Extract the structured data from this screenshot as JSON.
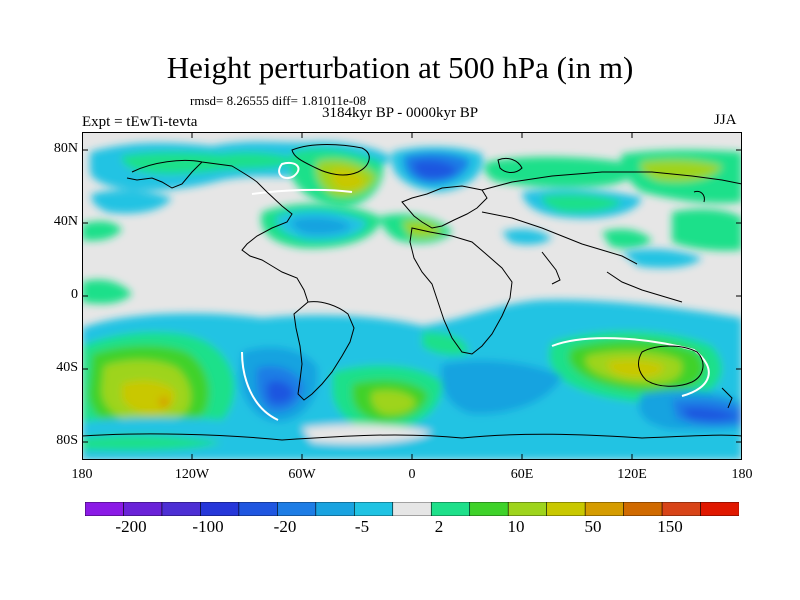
{
  "title": "Height perturbation at 500 hPa (in m)",
  "stats": "rmsd= 8.26555 diff= 1.81011e-08",
  "period": "3184kyr BP - 0000kyr BP",
  "experiment": "Expt = tEwTi-tevta",
  "season": "JJA",
  "axes": {
    "lat_labels": [
      "80N",
      "40N",
      "0",
      "40S",
      "80S"
    ],
    "lon_labels": [
      "180",
      "120W",
      "60W",
      "0",
      "60E",
      "120E",
      "180"
    ]
  },
  "colorbar": {
    "colors": [
      "#8b1ae6",
      "#6a22d8",
      "#4d2fd4",
      "#2637d9",
      "#1f56e0",
      "#1e7de5",
      "#19a3e0",
      "#20c3e3",
      "#e6e6e6",
      "#1ee08a",
      "#3fd22a",
      "#9ed41c",
      "#c9c800",
      "#d59c00",
      "#d06a00",
      "#d84418",
      "#e01800"
    ],
    "labels": [
      "-200",
      "-100",
      "-20",
      "-5",
      "2",
      "10",
      "50",
      "150"
    ]
  }
}
